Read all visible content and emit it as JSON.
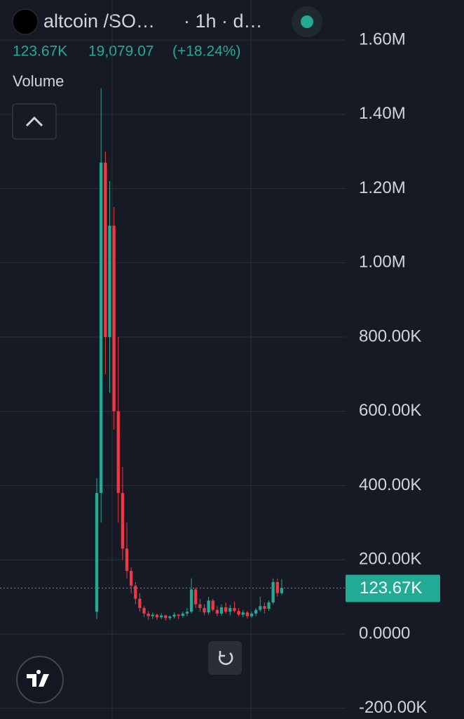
{
  "chart_data": {
    "type": "candlestick",
    "title": "altcoin /SO…",
    "interval": "· 1h · d…",
    "last_price": {
      "value": 123670,
      "label": "123.67K"
    },
    "change": {
      "value": 19079.07,
      "label": "19,079.07"
    },
    "change_pct": {
      "value": 18.24,
      "label": "(+18.24%)"
    },
    "indicator": "Volume",
    "up_color": "#22ab94",
    "down_color": "#f23645",
    "grid": true,
    "ylim": [
      -229000,
      1708000
    ],
    "yticks": [
      {
        "value": 1600000,
        "label": "1.60M"
      },
      {
        "value": 1400000,
        "label": "1.40M"
      },
      {
        "value": 1200000,
        "label": "1.20M"
      },
      {
        "value": 1000000,
        "label": "1.00M"
      },
      {
        "value": 800000,
        "label": "800.00K"
      },
      {
        "value": 600000,
        "label": "600.00K"
      },
      {
        "value": 400000,
        "label": "400.00K"
      },
      {
        "value": 200000,
        "label": "200.00K"
      },
      {
        "value": 0,
        "label": "0.0000"
      },
      {
        "value": -200000,
        "label": "-200.00K"
      }
    ],
    "open": [
      60000,
      380000,
      1270000,
      800000,
      1100000,
      600000,
      380000,
      230000,
      170000,
      130000,
      95000,
      70000,
      55000,
      48000,
      52000,
      45000,
      50000,
      43000,
      47000,
      52000,
      49000,
      55000,
      60000,
      120000,
      80000,
      70000,
      58000,
      90000,
      65000,
      55000,
      72000,
      60000,
      70000,
      62000,
      52000,
      58000,
      48000,
      55000,
      65000,
      75000,
      68000,
      85000,
      140000,
      110000
    ],
    "high": [
      420000,
      1470000,
      1300000,
      1220000,
      1150000,
      800000,
      450000,
      300000,
      180000,
      140000,
      110000,
      75000,
      62000,
      58000,
      55000,
      56000,
      52000,
      50000,
      58000,
      54000,
      60000,
      70000,
      150000,
      125000,
      95000,
      80000,
      100000,
      95000,
      75000,
      80000,
      85000,
      78000,
      88000,
      70000,
      65000,
      62000,
      60000,
      70000,
      100000,
      85000,
      90000,
      150000,
      150000,
      148000
    ],
    "low": [
      40000,
      300000,
      700000,
      650000,
      550000,
      300000,
      200000,
      150000,
      110000,
      80000,
      60000,
      45000,
      38000,
      40000,
      38000,
      40000,
      36000,
      38000,
      42000,
      40000,
      44000,
      48000,
      55000,
      70000,
      60000,
      50000,
      52000,
      60000,
      48000,
      50000,
      55000,
      50000,
      58000,
      48000,
      45000,
      42000,
      44000,
      48000,
      60000,
      55000,
      62000,
      80000,
      100000,
      105000
    ],
    "close": [
      380000,
      1270000,
      800000,
      1100000,
      600000,
      380000,
      230000,
      170000,
      130000,
      95000,
      70000,
      55000,
      48000,
      52000,
      45000,
      50000,
      43000,
      47000,
      52000,
      49000,
      55000,
      60000,
      120000,
      80000,
      70000,
      58000,
      90000,
      65000,
      55000,
      72000,
      60000,
      70000,
      62000,
      52000,
      58000,
      48000,
      55000,
      65000,
      75000,
      68000,
      85000,
      140000,
      110000,
      123670
    ]
  }
}
